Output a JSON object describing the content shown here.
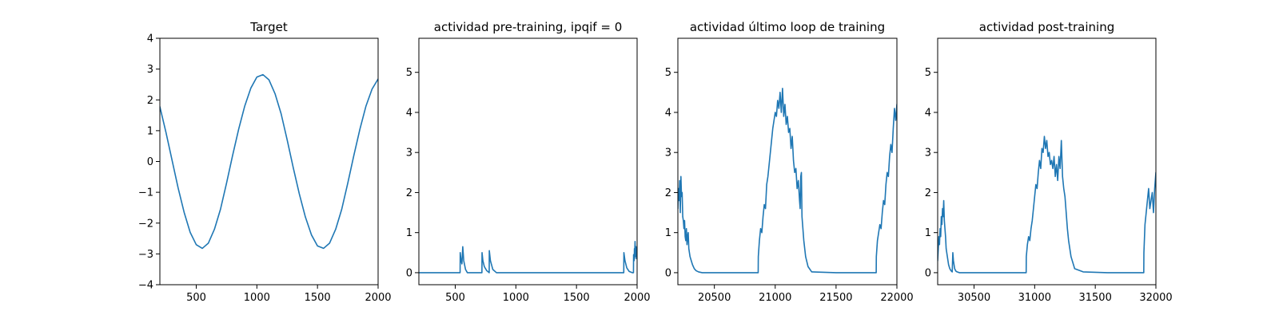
{
  "figure": {
    "background": "#ffffff",
    "line_color": "#1f77b4"
  },
  "chart_data": [
    {
      "type": "line",
      "title": "Target",
      "xlabel": "",
      "ylabel": "",
      "xlim": [
        200,
        2000
      ],
      "ylim": [
        -4,
        4
      ],
      "xticks": [
        500,
        1000,
        1500,
        2000
      ],
      "xtick_labels": [
        "500",
        "1000",
        "1500",
        "2000"
      ],
      "yticks": [
        -4,
        -3,
        -2,
        -1,
        0,
        1,
        2,
        3,
        4
      ],
      "ytick_labels": [
        "−4",
        "−3",
        "−2",
        "−1",
        "0",
        "1",
        "2",
        "3",
        "4"
      ],
      "grid": false,
      "series": [
        {
          "color": "#1f77b4",
          "x": [
            200,
            250,
            300,
            350,
            400,
            450,
            500,
            550,
            600,
            650,
            700,
            750,
            800,
            850,
            900,
            950,
            1000,
            1050,
            1100,
            1150,
            1200,
            1250,
            1300,
            1350,
            1400,
            1450,
            1500,
            1550,
            1600,
            1650,
            1700,
            1750,
            1800,
            1850,
            1900,
            1950,
            2000
          ],
          "y": [
            1.78,
            0.95,
            0.05,
            -0.85,
            -1.65,
            -2.3,
            -2.7,
            -2.82,
            -2.65,
            -2.2,
            -1.55,
            -0.7,
            0.2,
            1.05,
            1.8,
            2.38,
            2.74,
            2.82,
            2.65,
            2.2,
            1.55,
            0.7,
            -0.2,
            -1.05,
            -1.8,
            -2.38,
            -2.74,
            -2.82,
            -2.65,
            -2.2,
            -1.55,
            -0.7,
            0.2,
            1.05,
            1.8,
            2.35,
            2.68
          ]
        }
      ]
    },
    {
      "type": "line",
      "title": "actividad pre-training, ipqif = 0",
      "xlabel": "",
      "ylabel": "",
      "xlim": [
        200,
        2000
      ],
      "ylim": [
        -0.3,
        5.85
      ],
      "xticks": [
        500,
        1000,
        1500,
        2000
      ],
      "xtick_labels": [
        "500",
        "1000",
        "1500",
        "2000"
      ],
      "yticks": [
        0,
        1,
        2,
        3,
        4,
        5
      ],
      "ytick_labels": [
        "0",
        "1",
        "2",
        "3",
        "4",
        "5"
      ],
      "grid": false,
      "series": [
        {
          "color": "#1f77b4",
          "x": [
            200,
            540,
            541,
            548,
            555,
            562,
            570,
            585,
            600,
            700,
            720,
            721,
            728,
            740,
            760,
            780,
            781,
            790,
            810,
            840,
            1880,
            1890,
            1891,
            1900,
            1915,
            1935,
            1960,
            1970,
            1971,
            1976,
            1978,
            1979,
            1983,
            1987,
            1991,
            1995,
            2000
          ],
          "y": [
            0,
            0,
            0.5,
            0.3,
            0.22,
            0.65,
            0.3,
            0.08,
            0,
            0,
            0,
            0.5,
            0.3,
            0.15,
            0.05,
            0,
            0.55,
            0.3,
            0.08,
            0,
            0,
            0,
            0.5,
            0.3,
            0.12,
            0.03,
            0,
            0,
            0.45,
            0.3,
            0.6,
            0.35,
            0.78,
            0.4,
            0.65,
            0.35,
            0.55
          ]
        }
      ]
    },
    {
      "type": "line",
      "title": "actividad último loop de training",
      "xlabel": "",
      "ylabel": "",
      "xlim": [
        20200,
        22000
      ],
      "ylim": [
        -0.3,
        5.85
      ],
      "xticks": [
        20500,
        21000,
        21500,
        22000
      ],
      "xtick_labels": [
        "20500",
        "21000",
        "21500",
        "22000"
      ],
      "grid": false,
      "yticks": [
        0,
        1,
        2,
        3,
        4,
        5
      ],
      "ytick_labels": [
        "0",
        "1",
        "2",
        "3",
        "4",
        "5"
      ],
      "series": [
        {
          "color": "#1f77b4",
          "x": [
            20200,
            20205,
            20210,
            20215,
            20220,
            20225,
            20230,
            20235,
            20240,
            20245,
            20250,
            20255,
            20260,
            20265,
            20270,
            20275,
            20280,
            20285,
            20290,
            20300,
            20310,
            20320,
            20335,
            20350,
            20370,
            20400,
            20600,
            20860,
            20861,
            20870,
            20880,
            20890,
            20900,
            20910,
            20920,
            20930,
            20940,
            20950,
            20960,
            20970,
            20980,
            20990,
            21000,
            21010,
            21020,
            21030,
            21040,
            21050,
            21060,
            21070,
            21080,
            21090,
            21100,
            21110,
            21120,
            21130,
            21140,
            21150,
            21160,
            21170,
            21180,
            21190,
            21200,
            21205,
            21210,
            21215,
            21220,
            21225,
            21235,
            21250,
            21270,
            21300,
            21500,
            21830,
            21831,
            21840,
            21850,
            21860,
            21870,
            21880,
            21890,
            21900,
            21910,
            21920,
            21930,
            21940,
            21950,
            21960,
            21970,
            21980,
            21990,
            22000
          ],
          "y": [
            1.6,
            2.1,
            1.8,
            2.3,
            1.5,
            2.4,
            1.9,
            2.0,
            1.4,
            1.3,
            1.1,
            1.3,
            0.9,
            0.8,
            1.1,
            0.7,
            0.9,
            1.0,
            0.6,
            0.4,
            0.3,
            0.2,
            0.1,
            0.05,
            0.02,
            0,
            0,
            0,
            0.4,
            0.8,
            1.1,
            1.0,
            1.4,
            1.7,
            1.6,
            2.2,
            2.4,
            2.7,
            3.0,
            3.3,
            3.6,
            3.8,
            4.0,
            3.9,
            4.3,
            4.1,
            4.5,
            4.0,
            4.6,
            3.9,
            4.2,
            3.7,
            3.9,
            3.5,
            3.6,
            3.1,
            3.4,
            2.8,
            2.5,
            2.6,
            2.1,
            2.3,
            1.8,
            1.6,
            2.4,
            2.5,
            1.4,
            1.2,
            0.8,
            0.4,
            0.15,
            0.02,
            0,
            0,
            0.4,
            0.8,
            1.0,
            1.2,
            1.1,
            1.5,
            1.8,
            1.7,
            2.2,
            2.5,
            2.4,
            2.9,
            3.2,
            3.0,
            3.6,
            4.1,
            3.8,
            4.2
          ]
        }
      ]
    },
    {
      "type": "line",
      "title": "actividad post-training",
      "xlabel": "",
      "ylabel": "",
      "xlim": [
        30200,
        32000
      ],
      "ylim": [
        -0.3,
        5.85
      ],
      "xticks": [
        30500,
        31000,
        31500,
        32000
      ],
      "xtick_labels": [
        "30500",
        "31000",
        "31500",
        "32000"
      ],
      "yticks": [
        0,
        1,
        2,
        3,
        4,
        5
      ],
      "ytick_labels": [
        "0",
        "1",
        "2",
        "3",
        "4",
        "5"
      ],
      "grid": false,
      "series": [
        {
          "color": "#1f77b4",
          "x": [
            30200,
            30205,
            30210,
            30215,
            30220,
            30225,
            30230,
            30235,
            30240,
            30245,
            30250,
            30255,
            30260,
            30265,
            30270,
            30280,
            30290,
            30300,
            30310,
            30320,
            30325,
            30330,
            30340,
            30350,
            30360,
            30380,
            30400,
            30600,
            30930,
            30931,
            30940,
            30950,
            30960,
            30970,
            30980,
            30990,
            31000,
            31010,
            31020,
            31030,
            31040,
            31050,
            31060,
            31070,
            31080,
            31090,
            31100,
            31110,
            31120,
            31130,
            31140,
            31150,
            31160,
            31170,
            31180,
            31190,
            31200,
            31210,
            31220,
            31230,
            31240,
            31250,
            31260,
            31270,
            31280,
            31300,
            31330,
            31400,
            31600,
            31900,
            31901,
            31910,
            31920,
            31930,
            31940,
            31950,
            31960,
            31970,
            31980,
            31990,
            32000
          ],
          "y": [
            0.3,
            0.6,
            0.9,
            0.7,
            1.1,
            0.9,
            1.4,
            1.2,
            1.6,
            1.4,
            1.8,
            1.3,
            1.1,
            0.9,
            0.6,
            0.4,
            0.2,
            0.1,
            0.05,
            0.02,
            0.5,
            0.3,
            0.1,
            0.04,
            0.02,
            0,
            0,
            0,
            0,
            0.4,
            0.7,
            0.9,
            0.8,
            1.1,
            1.3,
            1.6,
            1.9,
            2.2,
            2.1,
            2.5,
            2.8,
            2.6,
            3.1,
            3.0,
            3.4,
            3.1,
            3.3,
            2.9,
            3.0,
            2.7,
            2.8,
            2.6,
            2.9,
            2.4,
            2.7,
            2.3,
            2.9,
            2.6,
            3.3,
            2.4,
            2.1,
            1.9,
            1.5,
            1.1,
            0.8,
            0.4,
            0.1,
            0.02,
            0,
            0,
            0.5,
            1.2,
            1.5,
            1.8,
            2.1,
            1.6,
            1.8,
            2.0,
            1.5,
            2.1,
            2.5
          ]
        }
      ]
    }
  ]
}
